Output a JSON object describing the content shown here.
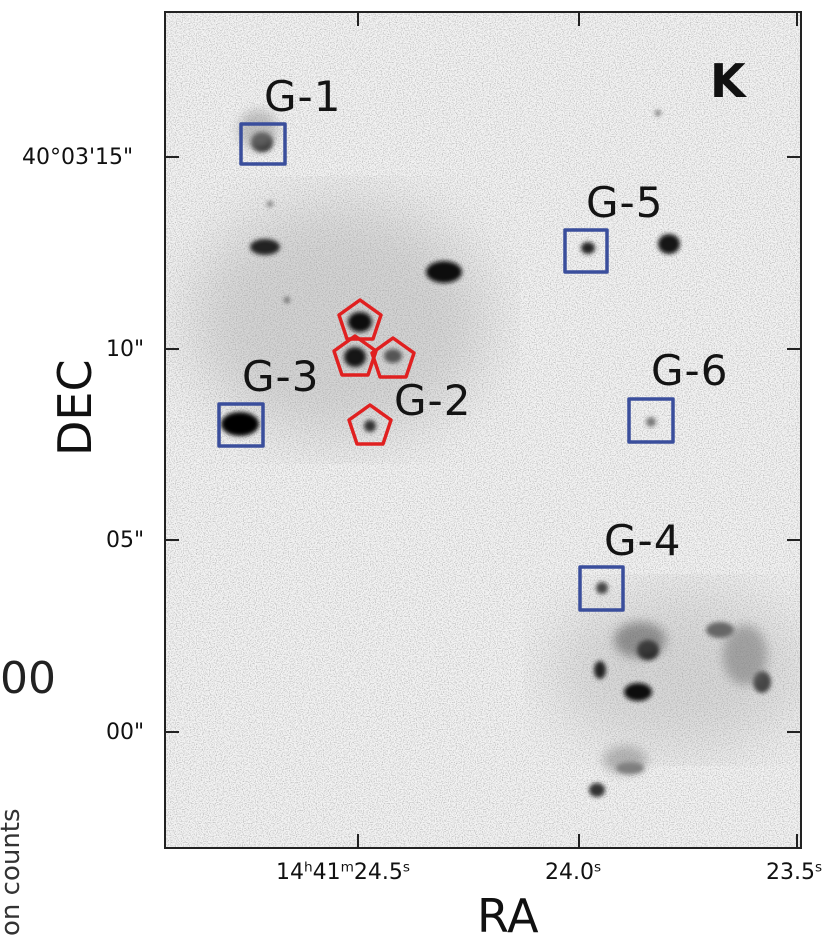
{
  "band_label": "K",
  "axes": {
    "xlabel": "RA",
    "ylabel": "DEC",
    "dec_ticks": [
      "40°03'15\"",
      "10\"",
      "05\"",
      "00\""
    ],
    "ra_ticks": [
      {
        "h": "14",
        "h_unit": "h",
        "m": "41",
        "m_unit": "m",
        "s": "24.5",
        "s_unit": "s"
      },
      {
        "s": "24.0",
        "s_unit": "s"
      },
      {
        "s": "23.5",
        "s_unit": "s"
      }
    ]
  },
  "sources": [
    {
      "id": "G-1",
      "marker": "square"
    },
    {
      "id": "G-2",
      "marker": "pentagon"
    },
    {
      "id": "G-3",
      "marker": "square"
    },
    {
      "id": "G-4",
      "marker": "square"
    },
    {
      "id": "G-5",
      "marker": "square"
    },
    {
      "id": "G-6",
      "marker": "square"
    }
  ],
  "marker_colors": {
    "square": "#3a4e9c",
    "pentagon": "#e02020"
  },
  "background_fragments": {
    "left_number": "00",
    "left_vertical": "on counts"
  }
}
